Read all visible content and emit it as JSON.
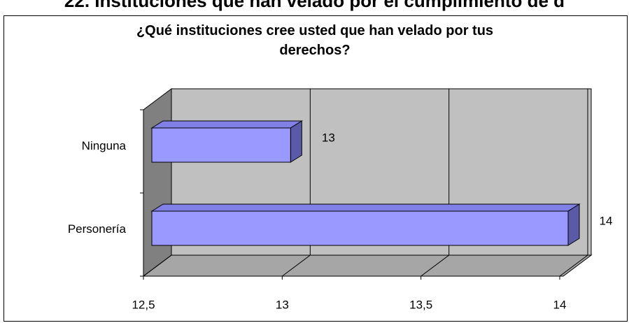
{
  "heading": "22. Instituciones que han velado por el cumplimiento de d",
  "chart_data": {
    "type": "bar3d_horizontal",
    "title": "¿Qué instituciones cree usted que han velado por tus derechos?",
    "categories": [
      "Ninguna",
      "Personería"
    ],
    "values": [
      13,
      14
    ],
    "color": "#9999ff",
    "xlim": [
      12.5,
      14
    ],
    "xticks": [
      {
        "value": 12.5,
        "label": "12,5"
      },
      13,
      {
        "value": 13.5,
        "label": "13,5"
      },
      14
    ],
    "grid": true
  }
}
